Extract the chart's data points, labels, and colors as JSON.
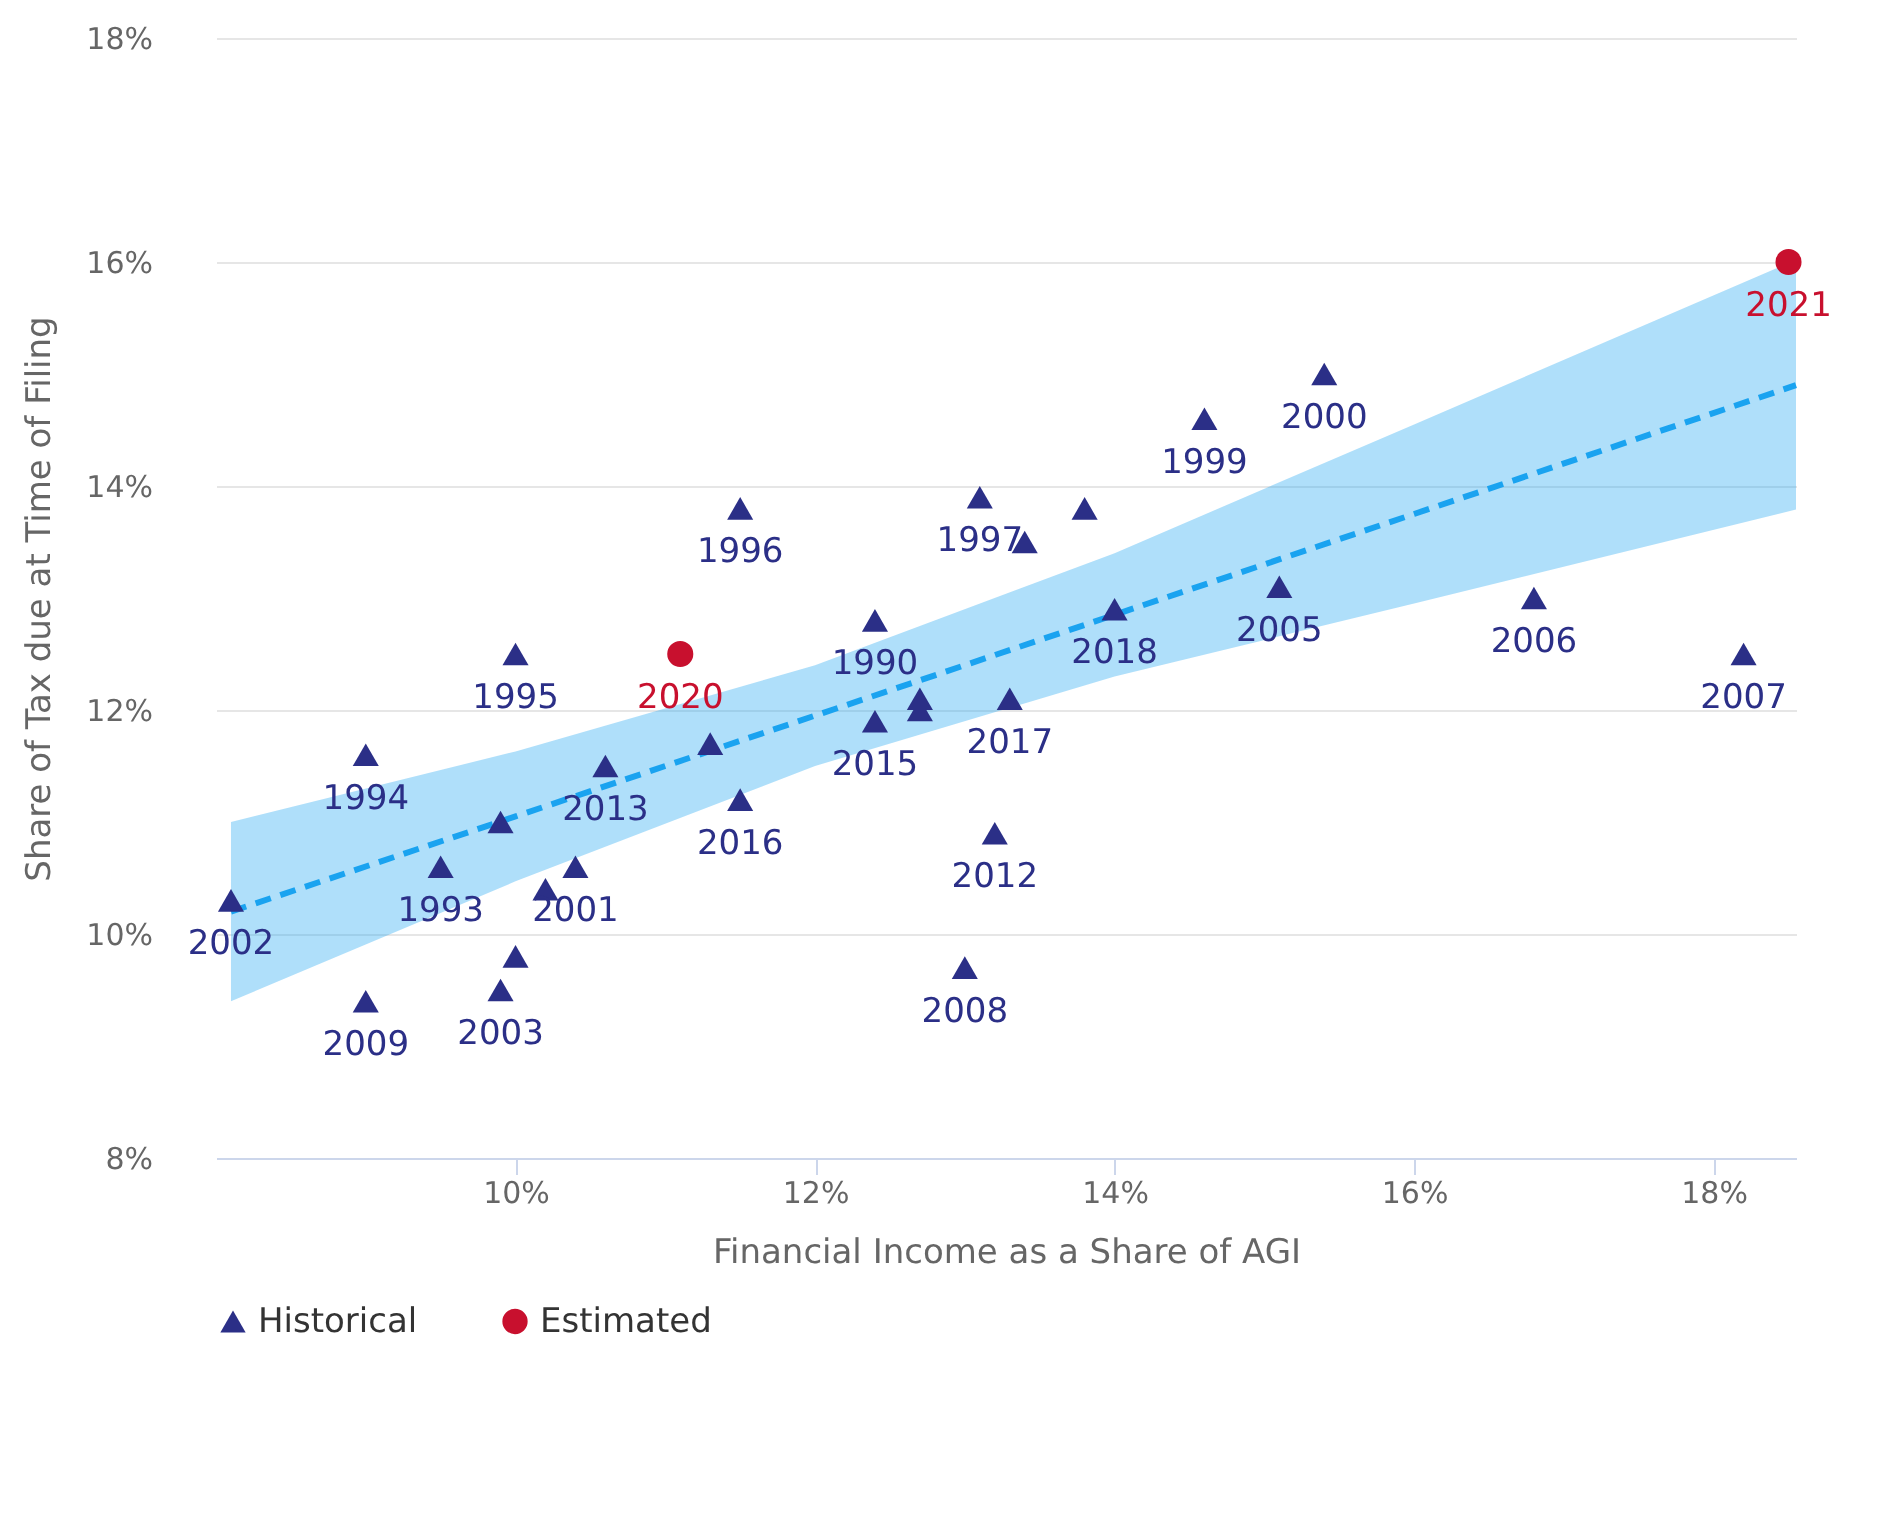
{
  "chart_data": {
    "type": "scatter",
    "xlabel": "Financial Income as a Share of AGI",
    "ylabel": "Share of Tax due at Time of Filing",
    "xlim": [
      8,
      18.55
    ],
    "ylim": [
      8,
      18
    ],
    "xticks": [
      {
        "value": 10,
        "label": "10%"
      },
      {
        "value": 12,
        "label": "12%"
      },
      {
        "value": 14,
        "label": "14%"
      },
      {
        "value": 16,
        "label": "16%"
      },
      {
        "value": 18,
        "label": "18%"
      }
    ],
    "yticks": [
      {
        "value": 8,
        "label": "8%"
      },
      {
        "value": 10,
        "label": "10%"
      },
      {
        "value": 12,
        "label": "12%"
      },
      {
        "value": 14,
        "label": "14%"
      },
      {
        "value": 16,
        "label": "16%"
      },
      {
        "value": 18,
        "label": "18%"
      }
    ],
    "grid": "y",
    "legend": "bottom",
    "series": [
      {
        "type": "line",
        "color": "#1aa3f0",
        "line_style": "dashed",
        "x": [
          8.1,
          10,
          12,
          14,
          16,
          18.55
        ],
        "values": [
          10.2,
          11.05,
          11.95,
          12.85,
          13.75,
          14.9
        ],
        "lower": [
          9.4,
          10.47,
          11.5,
          12.3,
          12.95,
          13.79
        ],
        "upper": [
          11.0,
          11.63,
          12.4,
          13.4,
          14.55,
          16.02
        ]
      },
      {
        "name": "Historical",
        "color": "#2b2f87",
        "marker": "triangle",
        "x": [
          8.1,
          9.0,
          9.0,
          9.5,
          9.9,
          10.0,
          10.0,
          9.9,
          10.2,
          10.4,
          10.6,
          11.3,
          11.5,
          11.5,
          12.4,
          12.4,
          12.7,
          12.7,
          13.1,
          13.4,
          13.8,
          13.3,
          13.2,
          13.0,
          14.0,
          14.6,
          15.4,
          15.1,
          16.8,
          18.2
        ],
        "values": [
          10.3,
          9.4,
          11.6,
          10.6,
          11.0,
          12.5,
          9.8,
          9.5,
          10.4,
          10.6,
          11.5,
          11.7,
          11.2,
          13.8,
          12.8,
          11.9,
          12.0,
          12.1,
          13.9,
          13.5,
          13.8,
          12.1,
          10.9,
          9.7,
          12.9,
          14.6,
          15.0,
          13.1,
          13.0,
          12.5
        ]
      },
      {
        "name": "Estimated",
        "color": "#c8102e",
        "marker": "circle",
        "x": [
          11.1,
          18.5
        ],
        "values": [
          12.5,
          16.0
        ]
      }
    ],
    "annotations": [
      {
        "text": "2002",
        "x": 8.1,
        "y": 10.3
      },
      {
        "text": "2009",
        "x": 9.0,
        "y": 9.4
      },
      {
        "text": "1994",
        "x": 9.0,
        "y": 11.6
      },
      {
        "text": "1993",
        "x": 9.5,
        "y": 10.6
      },
      {
        "text": "1995",
        "x": 10.0,
        "y": 12.5
      },
      {
        "text": "2003",
        "x": 9.9,
        "y": 9.5
      },
      {
        "text": "2001",
        "x": 10.4,
        "y": 10.6
      },
      {
        "text": "2013",
        "x": 10.6,
        "y": 11.5
      },
      {
        "text": "2016",
        "x": 11.5,
        "y": 11.2
      },
      {
        "text": "1996",
        "x": 11.5,
        "y": 13.8
      },
      {
        "text": "1990",
        "x": 12.4,
        "y": 12.8
      },
      {
        "text": "2015",
        "x": 12.4,
        "y": 11.9
      },
      {
        "text": "1997",
        "x": 13.1,
        "y": 13.9
      },
      {
        "text": "2017",
        "x": 13.3,
        "y": 12.1
      },
      {
        "text": "2012",
        "x": 13.2,
        "y": 10.9
      },
      {
        "text": "2008",
        "x": 13.0,
        "y": 9.7
      },
      {
        "text": "2018",
        "x": 14.0,
        "y": 12.9
      },
      {
        "text": "1999",
        "x": 14.6,
        "y": 14.6
      },
      {
        "text": "2000",
        "x": 15.4,
        "y": 15.0
      },
      {
        "text": "2005",
        "x": 15.1,
        "y": 13.1
      },
      {
        "text": "2006",
        "x": 16.8,
        "y": 13.0
      },
      {
        "text": "2007",
        "x": 18.2,
        "y": 12.5
      },
      {
        "text": "2020",
        "x": 11.1,
        "y": 12.5
      },
      {
        "text": "2021",
        "x": 18.5,
        "y": 16.0
      }
    ]
  }
}
